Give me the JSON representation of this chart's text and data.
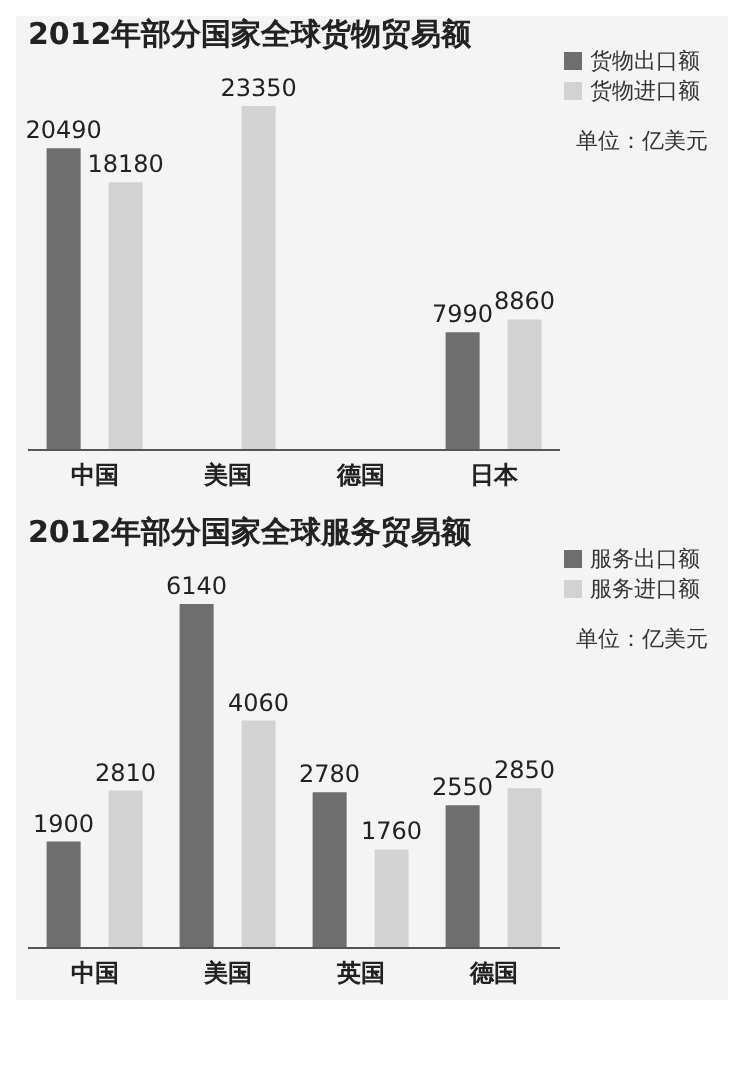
{
  "chart_data": [
    {
      "type": "bar",
      "title": "2012年部分国家全球货物贸易额",
      "categories": [
        "中国",
        "美国",
        "德国",
        "日本"
      ],
      "series": [
        {
          "name": "货物出口额",
          "color": "#6e6e6e",
          "values": [
            20490,
            null,
            null,
            7990
          ]
        },
        {
          "name": "货物进口额",
          "color": "#d2d2d2",
          "values": [
            18180,
            23350,
            null,
            8860
          ]
        }
      ],
      "data_labels": true,
      "legend": "top right",
      "annotations": [
        "单位：亿美元"
      ]
    },
    {
      "type": "bar",
      "title": "2012年部分国家全球服务贸易额",
      "categories": [
        "中国",
        "美国",
        "英国",
        "德国"
      ],
      "series": [
        {
          "name": "服务出口额",
          "color": "#6e6e6e",
          "values": [
            1900,
            6140,
            2780,
            2550
          ]
        },
        {
          "name": "服务进口额",
          "color": "#d2d2d2",
          "values": [
            2810,
            4060,
            1760,
            2850
          ]
        }
      ],
      "data_labels": true,
      "legend": "top right",
      "annotations": [
        "单位：亿美元"
      ]
    }
  ]
}
